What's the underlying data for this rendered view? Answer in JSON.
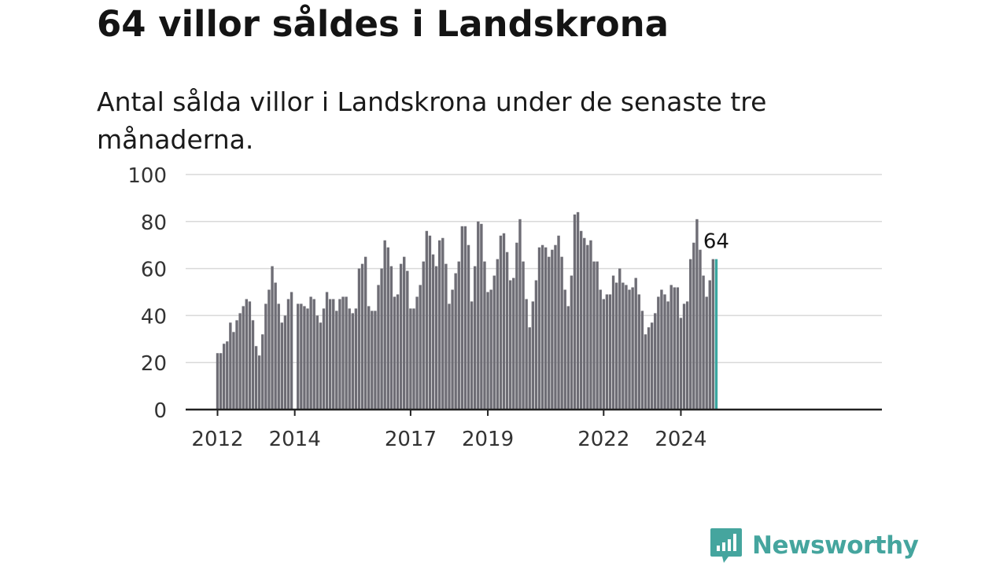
{
  "title": "64 villor såldes i Landskrona",
  "subtitle": "Antal sålda villor i Landskrona under de senaste tre månaderna.",
  "brand": {
    "name": "Newsworthy",
    "color": "#45a59e"
  },
  "chart_data": {
    "type": "bar",
    "title": "64 villor såldes i Landskrona",
    "subtitle": "Antal sålda villor i Landskrona under de senaste tre månaderna.",
    "xlabel": "",
    "ylabel": "",
    "ylim": [
      0,
      100
    ],
    "yticks": [
      0,
      20,
      40,
      60,
      80,
      100
    ],
    "grid": true,
    "x_tick_labels": [
      {
        "label": "2012",
        "index": 0
      },
      {
        "label": "2014",
        "index": 24
      },
      {
        "label": "2017",
        "index": 60
      },
      {
        "label": "2019",
        "index": 84
      },
      {
        "label": "2022",
        "index": 120
      },
      {
        "label": "2024",
        "index": 144
      }
    ],
    "bar_color": "#6e6d75",
    "highlight_color": "#3aa6a0",
    "highlight_label": "64",
    "values": [
      24,
      24,
      28,
      29,
      37,
      33,
      38,
      41,
      44,
      47,
      46,
      38,
      27,
      23,
      32,
      45,
      51,
      61,
      54,
      45,
      37,
      40,
      47,
      50,
      null,
      45,
      45,
      44,
      43,
      48,
      47,
      40,
      37,
      43,
      50,
      47,
      47,
      42,
      47,
      48,
      48,
      43,
      41,
      43,
      60,
      62,
      65,
      44,
      42,
      42,
      53,
      60,
      72,
      69,
      61,
      48,
      49,
      62,
      65,
      59,
      43,
      43,
      48,
      53,
      63,
      76,
      74,
      66,
      61,
      72,
      73,
      62,
      45,
      51,
      58,
      63,
      78,
      78,
      70,
      46,
      61,
      80,
      79,
      63,
      50,
      51,
      57,
      64,
      74,
      75,
      67,
      55,
      56,
      71,
      81,
      63,
      47,
      35,
      46,
      55,
      69,
      70,
      69,
      65,
      68,
      70,
      74,
      65,
      51,
      44,
      57,
      83,
      84,
      76,
      73,
      70,
      72,
      63,
      63,
      51,
      47,
      49,
      49,
      57,
      54,
      60,
      54,
      53,
      51,
      52,
      56,
      49,
      42,
      32,
      35,
      37,
      41,
      48,
      51,
      49,
      46,
      53,
      52,
      52,
      39,
      45,
      46,
      64,
      71,
      81,
      68,
      57,
      48,
      55,
      64,
      64
    ]
  }
}
